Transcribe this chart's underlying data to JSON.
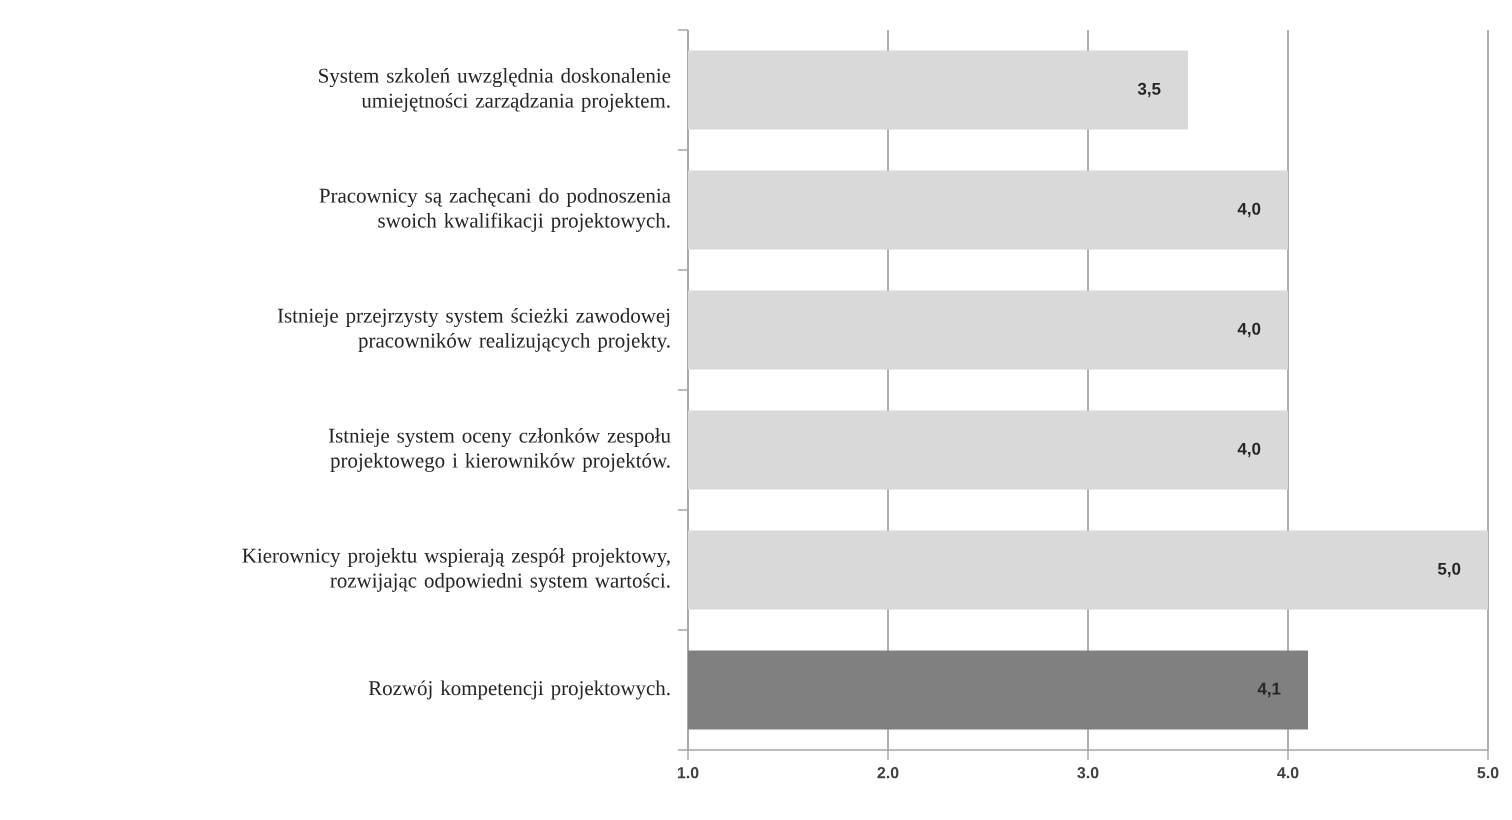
{
  "chart_data": {
    "type": "bar",
    "orientation": "horizontal",
    "categories": [
      "System szkoleń uwzględnia doskonalenie umiejętności zarządzania projektem.",
      "Pracownicy są zachęcani do podnoszenia swoich kwalifikacji projektowych.",
      "Istnieje przejrzysty system ścieżki zawodowej pracowników realizujących projekty.",
      "Istnieje system oceny członków zespołu projektowego i kierowników projektów.",
      "Kierownicy projektu wspierają zespół projektowy, rozwijając odpowiedni system wartości.",
      "Rozwój kompetencji projektowych."
    ],
    "values": [
      3.5,
      4.0,
      4.0,
      4.0,
      5.0,
      4.1
    ],
    "value_labels": [
      "3,5",
      "4,0",
      "4,0",
      "4,0",
      "5,0",
      "4,1"
    ],
    "colors": [
      "#d9d9d9",
      "#d9d9d9",
      "#d9d9d9",
      "#d9d9d9",
      "#d9d9d9",
      "#808080"
    ],
    "xlim": [
      1,
      5
    ],
    "xticks": [
      {
        "value": 1,
        "label": "1.0"
      },
      {
        "value": 2,
        "label": "2.0"
      },
      {
        "value": 3,
        "label": "3.0"
      },
      {
        "value": 4,
        "label": "4.0"
      },
      {
        "value": 5,
        "label": "5.0"
      }
    ],
    "grid": "x"
  }
}
